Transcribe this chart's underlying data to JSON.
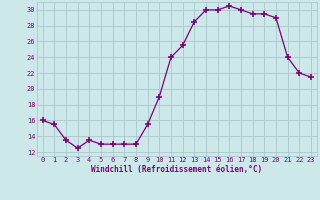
{
  "x": [
    0,
    1,
    2,
    3,
    4,
    5,
    6,
    7,
    8,
    9,
    10,
    11,
    12,
    13,
    14,
    15,
    16,
    17,
    18,
    19,
    20,
    21,
    22,
    23
  ],
  "y": [
    16,
    15.5,
    13.5,
    12.5,
    13.5,
    13,
    13,
    13,
    13,
    15.5,
    19,
    24,
    25.5,
    28.5,
    30,
    30,
    30.5,
    30,
    29.5,
    29.5,
    29,
    24,
    22,
    21.5
  ],
  "line_color": "#800080",
  "marker_color": "#800080",
  "bg_color": "#cce8e8",
  "grid_color": "#aac8cc",
  "xlabel": "Windchill (Refroidissement éolien,°C)",
  "ylim": [
    11.5,
    31
  ],
  "xlim": [
    -0.5,
    23.5
  ],
  "yticks": [
    12,
    14,
    16,
    18,
    20,
    22,
    24,
    26,
    28,
    30
  ],
  "xticks": [
    0,
    1,
    2,
    3,
    4,
    5,
    6,
    7,
    8,
    9,
    10,
    11,
    12,
    13,
    14,
    15,
    16,
    17,
    18,
    19,
    20,
    21,
    22,
    23
  ]
}
